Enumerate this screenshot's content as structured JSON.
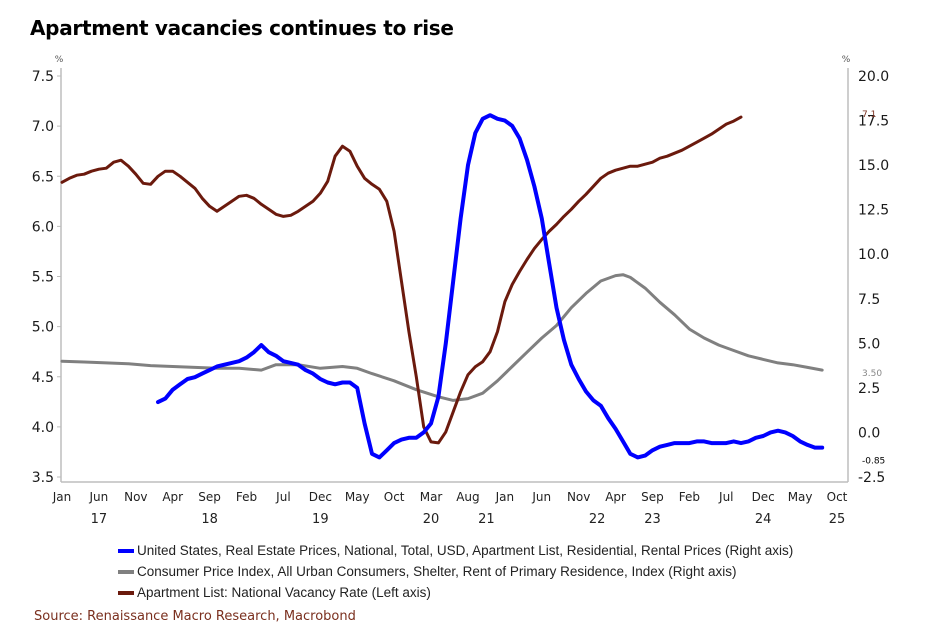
{
  "title": "Apartment vacancies continues to rise",
  "source": "Source: Renaissance Macro Research, Macrobond",
  "chart_data": {
    "type": "line",
    "title": "Apartment vacancies continues to rise",
    "x_start": "Jan 2017",
    "x_unit": "month index (0 = Jan 2017)",
    "xlim": [
      0,
      105
    ],
    "x_ticks": [
      {
        "m": 0,
        "label": "Jan"
      },
      {
        "m": 5,
        "label": "Jun"
      },
      {
        "m": 10,
        "label": "Nov"
      },
      {
        "m": 15,
        "label": "Apr"
      },
      {
        "m": 20,
        "label": "Sep"
      },
      {
        "m": 25,
        "label": "Feb"
      },
      {
        "m": 30,
        "label": "Jul"
      },
      {
        "m": 35,
        "label": "Dec"
      },
      {
        "m": 40,
        "label": "May"
      },
      {
        "m": 45,
        "label": "Oct"
      },
      {
        "m": 50,
        "label": "Mar"
      },
      {
        "m": 55,
        "label": "Aug"
      },
      {
        "m": 60,
        "label": "Jan"
      },
      {
        "m": 65,
        "label": "Jun"
      },
      {
        "m": 70,
        "label": "Nov"
      },
      {
        "m": 75,
        "label": "Apr"
      },
      {
        "m": 80,
        "label": "Sep"
      },
      {
        "m": 85,
        "label": "Feb"
      },
      {
        "m": 90,
        "label": "Jul"
      },
      {
        "m": 95,
        "label": "Dec"
      },
      {
        "m": 100,
        "label": "May"
      },
      {
        "m": 105,
        "label": "Oct"
      }
    ],
    "year_labels": [
      {
        "m": 5,
        "label": "17"
      },
      {
        "m": 20,
        "label": "18"
      },
      {
        "m": 35,
        "label": "19"
      },
      {
        "m": 50,
        "label": "20"
      },
      {
        "m": 57.5,
        "label": "21"
      },
      {
        "m": 72.5,
        "label": "22"
      },
      {
        "m": 80,
        "label": "23"
      },
      {
        "m": 95,
        "label": "24"
      },
      {
        "m": 105,
        "label": "25"
      }
    ],
    "left_axis": {
      "label": "%",
      "ylim": [
        3.5,
        7.5
      ],
      "ticks": [
        "7.5",
        "7.0",
        "6.5",
        "6.0",
        "5.5",
        "5.0",
        "4.5",
        "4.0",
        "3.5"
      ]
    },
    "right_axis": {
      "label": "%",
      "ylim": [
        -2.5,
        20.0
      ],
      "ticks": [
        "20.0",
        "17.5",
        "15.0",
        "12.5",
        "10.0",
        "7.5",
        "5.0",
        "2.5",
        "0.0",
        "-2.5"
      ]
    },
    "grid": false,
    "legend_position": "bottom",
    "series": [
      {
        "name": "United States, Real Estate Prices, National, Total, USD, Apartment List, Residential, Rental Prices (Right axis)",
        "axis": "right",
        "color": "#0000ff",
        "end_label": "-0.85",
        "points": [
          [
            13,
            1.7
          ],
          [
            14,
            1.9
          ],
          [
            15,
            2.4
          ],
          [
            16,
            2.7
          ],
          [
            17,
            3.0
          ],
          [
            18,
            3.1
          ],
          [
            19,
            3.3
          ],
          [
            20,
            3.5
          ],
          [
            21,
            3.7
          ],
          [
            22,
            3.8
          ],
          [
            23,
            3.9
          ],
          [
            24,
            4.0
          ],
          [
            25,
            4.2
          ],
          [
            26,
            4.5
          ],
          [
            27,
            4.9
          ],
          [
            28,
            4.5
          ],
          [
            29,
            4.3
          ],
          [
            30,
            4.0
          ],
          [
            31,
            3.9
          ],
          [
            32,
            3.8
          ],
          [
            33,
            3.5
          ],
          [
            34,
            3.3
          ],
          [
            35,
            3.0
          ],
          [
            36,
            2.8
          ],
          [
            37,
            2.7
          ],
          [
            38,
            2.8
          ],
          [
            39,
            2.8
          ],
          [
            40,
            2.5
          ],
          [
            41,
            0.5
          ],
          [
            42,
            -1.2
          ],
          [
            43,
            -1.4
          ],
          [
            44,
            -1.0
          ],
          [
            45,
            -0.6
          ],
          [
            46,
            -0.4
          ],
          [
            47,
            -0.3
          ],
          [
            48,
            -0.3
          ],
          [
            49,
            0.0
          ],
          [
            50,
            0.5
          ],
          [
            51,
            2.0
          ],
          [
            52,
            5.0
          ],
          [
            53,
            8.5
          ],
          [
            54,
            12.0
          ],
          [
            55,
            15.0
          ],
          [
            56,
            16.8
          ],
          [
            57,
            17.6
          ],
          [
            58,
            17.8
          ],
          [
            59,
            17.6
          ],
          [
            60,
            17.5
          ],
          [
            61,
            17.2
          ],
          [
            62,
            16.5
          ],
          [
            63,
            15.3
          ],
          [
            64,
            13.8
          ],
          [
            65,
            12.0
          ],
          [
            66,
            9.5
          ],
          [
            67,
            7.0
          ],
          [
            68,
            5.2
          ],
          [
            69,
            3.8
          ],
          [
            70,
            3.0
          ],
          [
            71,
            2.3
          ],
          [
            72,
            1.8
          ],
          [
            73,
            1.5
          ],
          [
            74,
            0.8
          ],
          [
            75,
            0.2
          ],
          [
            76,
            -0.5
          ],
          [
            77,
            -1.2
          ],
          [
            78,
            -1.4
          ],
          [
            79,
            -1.3
          ],
          [
            80,
            -1.0
          ],
          [
            81,
            -0.8
          ],
          [
            82,
            -0.7
          ],
          [
            83,
            -0.6
          ],
          [
            84,
            -0.6
          ],
          [
            85,
            -0.6
          ],
          [
            86,
            -0.5
          ],
          [
            87,
            -0.5
          ],
          [
            88,
            -0.6
          ],
          [
            89,
            -0.6
          ],
          [
            90,
            -0.6
          ],
          [
            91,
            -0.5
          ],
          [
            92,
            -0.6
          ],
          [
            93,
            -0.5
          ],
          [
            94,
            -0.3
          ],
          [
            95,
            -0.2
          ],
          [
            96,
            0.0
          ],
          [
            97,
            0.1
          ],
          [
            98,
            0.0
          ],
          [
            99,
            -0.2
          ],
          [
            100,
            -0.5
          ],
          [
            101,
            -0.7
          ],
          [
            102,
            -0.85
          ],
          [
            103,
            -0.85
          ]
        ]
      },
      {
        "name": "Consumer Price Index, All Urban Consumers, Shelter, Rent of Primary Residence, Index (Right axis)",
        "axis": "right",
        "color": "#808080",
        "end_label": "3.50",
        "points": [
          [
            0,
            4.0
          ],
          [
            3,
            3.95
          ],
          [
            6,
            3.9
          ],
          [
            9,
            3.85
          ],
          [
            12,
            3.75
          ],
          [
            15,
            3.7
          ],
          [
            18,
            3.65
          ],
          [
            21,
            3.6
          ],
          [
            24,
            3.6
          ],
          [
            27,
            3.5
          ],
          [
            29,
            3.8
          ],
          [
            32,
            3.8
          ],
          [
            35,
            3.6
          ],
          [
            38,
            3.7
          ],
          [
            40,
            3.6
          ],
          [
            42,
            3.3
          ],
          [
            45,
            2.9
          ],
          [
            48,
            2.4
          ],
          [
            51,
            2.0
          ],
          [
            53,
            1.8
          ],
          [
            55,
            1.9
          ],
          [
            57,
            2.2
          ],
          [
            59,
            2.9
          ],
          [
            61,
            3.7
          ],
          [
            63,
            4.5
          ],
          [
            65,
            5.3
          ],
          [
            67,
            6.0
          ],
          [
            69,
            7.0
          ],
          [
            71,
            7.8
          ],
          [
            73,
            8.5
          ],
          [
            75,
            8.8
          ],
          [
            76,
            8.85
          ],
          [
            77,
            8.7
          ],
          [
            79,
            8.1
          ],
          [
            81,
            7.3
          ],
          [
            83,
            6.6
          ],
          [
            85,
            5.8
          ],
          [
            87,
            5.3
          ],
          [
            89,
            4.9
          ],
          [
            91,
            4.6
          ],
          [
            93,
            4.3
          ],
          [
            95,
            4.1
          ],
          [
            97,
            3.9
          ],
          [
            99,
            3.8
          ],
          [
            101,
            3.65
          ],
          [
            103,
            3.5
          ]
        ]
      },
      {
        "name": "Apartment List: National Vacancy Rate (Left axis)",
        "axis": "left",
        "color": "#6b1a0d",
        "end_label": "7.1",
        "points": [
          [
            0,
            6.44
          ],
          [
            1,
            6.48
          ],
          [
            2,
            6.51
          ],
          [
            3,
            6.52
          ],
          [
            4,
            6.55
          ],
          [
            5,
            6.57
          ],
          [
            6,
            6.58
          ],
          [
            7,
            6.64
          ],
          [
            8,
            6.66
          ],
          [
            9,
            6.6
          ],
          [
            10,
            6.52
          ],
          [
            11,
            6.43
          ],
          [
            12,
            6.42
          ],
          [
            13,
            6.5
          ],
          [
            14,
            6.55
          ],
          [
            15,
            6.55
          ],
          [
            16,
            6.5
          ],
          [
            17,
            6.44
          ],
          [
            18,
            6.38
          ],
          [
            19,
            6.28
          ],
          [
            20,
            6.2
          ],
          [
            21,
            6.15
          ],
          [
            22,
            6.2
          ],
          [
            23,
            6.25
          ],
          [
            24,
            6.3
          ],
          [
            25,
            6.31
          ],
          [
            26,
            6.28
          ],
          [
            27,
            6.22
          ],
          [
            28,
            6.17
          ],
          [
            29,
            6.12
          ],
          [
            30,
            6.1
          ],
          [
            31,
            6.11
          ],
          [
            32,
            6.15
          ],
          [
            33,
            6.2
          ],
          [
            34,
            6.25
          ],
          [
            35,
            6.33
          ],
          [
            36,
            6.45
          ],
          [
            37,
            6.7
          ],
          [
            38,
            6.8
          ],
          [
            39,
            6.75
          ],
          [
            40,
            6.6
          ],
          [
            41,
            6.48
          ],
          [
            42,
            6.42
          ],
          [
            43,
            6.37
          ],
          [
            44,
            6.25
          ],
          [
            45,
            5.95
          ],
          [
            46,
            5.45
          ],
          [
            47,
            4.95
          ],
          [
            48,
            4.5
          ],
          [
            49,
            4.0
          ],
          [
            50,
            3.85
          ],
          [
            51,
            3.84
          ],
          [
            52,
            3.95
          ],
          [
            53,
            4.15
          ],
          [
            54,
            4.35
          ],
          [
            55,
            4.52
          ],
          [
            56,
            4.6
          ],
          [
            57,
            4.65
          ],
          [
            58,
            4.75
          ],
          [
            59,
            4.95
          ],
          [
            60,
            5.25
          ],
          [
            61,
            5.42
          ],
          [
            62,
            5.55
          ],
          [
            63,
            5.67
          ],
          [
            64,
            5.78
          ],
          [
            65,
            5.87
          ],
          [
            66,
            5.95
          ],
          [
            67,
            6.02
          ],
          [
            68,
            6.1
          ],
          [
            69,
            6.17
          ],
          [
            70,
            6.25
          ],
          [
            71,
            6.32
          ],
          [
            72,
            6.4
          ],
          [
            73,
            6.48
          ],
          [
            74,
            6.53
          ],
          [
            75,
            6.56
          ],
          [
            76,
            6.58
          ],
          [
            77,
            6.6
          ],
          [
            78,
            6.6
          ],
          [
            79,
            6.62
          ],
          [
            80,
            6.64
          ],
          [
            81,
            6.68
          ],
          [
            82,
            6.7
          ],
          [
            83,
            6.73
          ],
          [
            84,
            6.76
          ],
          [
            85,
            6.8
          ],
          [
            86,
            6.84
          ],
          [
            87,
            6.88
          ],
          [
            88,
            6.92
          ],
          [
            89,
            6.97
          ],
          [
            90,
            7.02
          ],
          [
            91,
            7.05
          ],
          [
            92,
            7.09
          ]
        ]
      }
    ]
  }
}
